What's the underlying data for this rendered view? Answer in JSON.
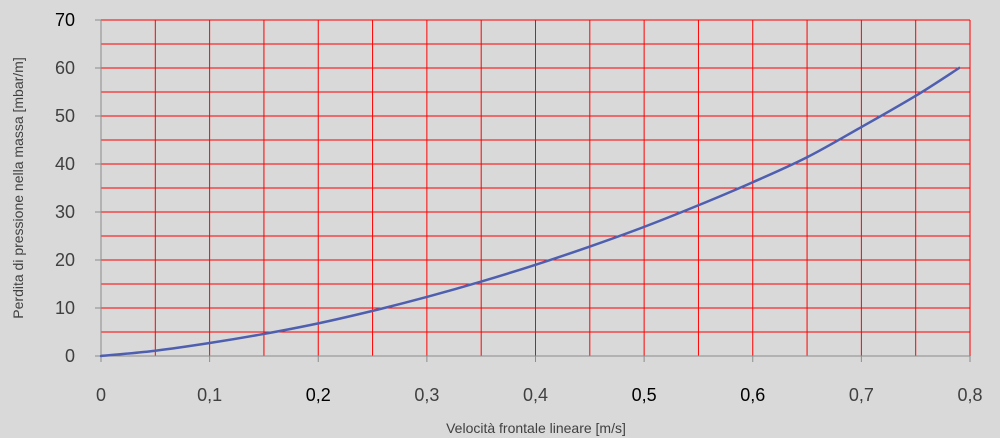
{
  "chart_data": {
    "type": "line",
    "title": "",
    "xlabel": "Velocità frontale lineare [m/s]",
    "ylabel": "Perdita di pressione nella massa [mbar/m]",
    "xlim": [
      0,
      0.8
    ],
    "ylim": [
      0,
      70
    ],
    "x_ticks": [
      "0",
      "0,1",
      "0,2",
      "0,3",
      "0,4",
      "0,5",
      "0,6",
      "0,7",
      "0,8"
    ],
    "y_ticks": [
      "0",
      "10",
      "20",
      "30",
      "40",
      "50",
      "60",
      "70"
    ],
    "x_tick_values": [
      0,
      0.1,
      0.2,
      0.3,
      0.4,
      0.5,
      0.6,
      0.7,
      0.8
    ],
    "y_tick_values": [
      0,
      10,
      20,
      30,
      40,
      50,
      60,
      70
    ],
    "grid": true,
    "grid_color": "#ff0000",
    "line_color": "#4f5fb0",
    "background": "#d9d9d9",
    "series": [
      {
        "x": [
          0,
          0.05,
          0.1,
          0.15,
          0.2,
          0.25,
          0.3,
          0.35,
          0.4,
          0.45,
          0.5,
          0.55,
          0.6,
          0.65,
          0.7,
          0.75,
          0.79
        ],
        "values": [
          0,
          1.1,
          2.7,
          4.6,
          6.8,
          9.4,
          12.3,
          15.5,
          19.0,
          22.8,
          26.9,
          31.4,
          36.2,
          41.4,
          47.7,
          54.2,
          60.0
        ]
      }
    ]
  }
}
